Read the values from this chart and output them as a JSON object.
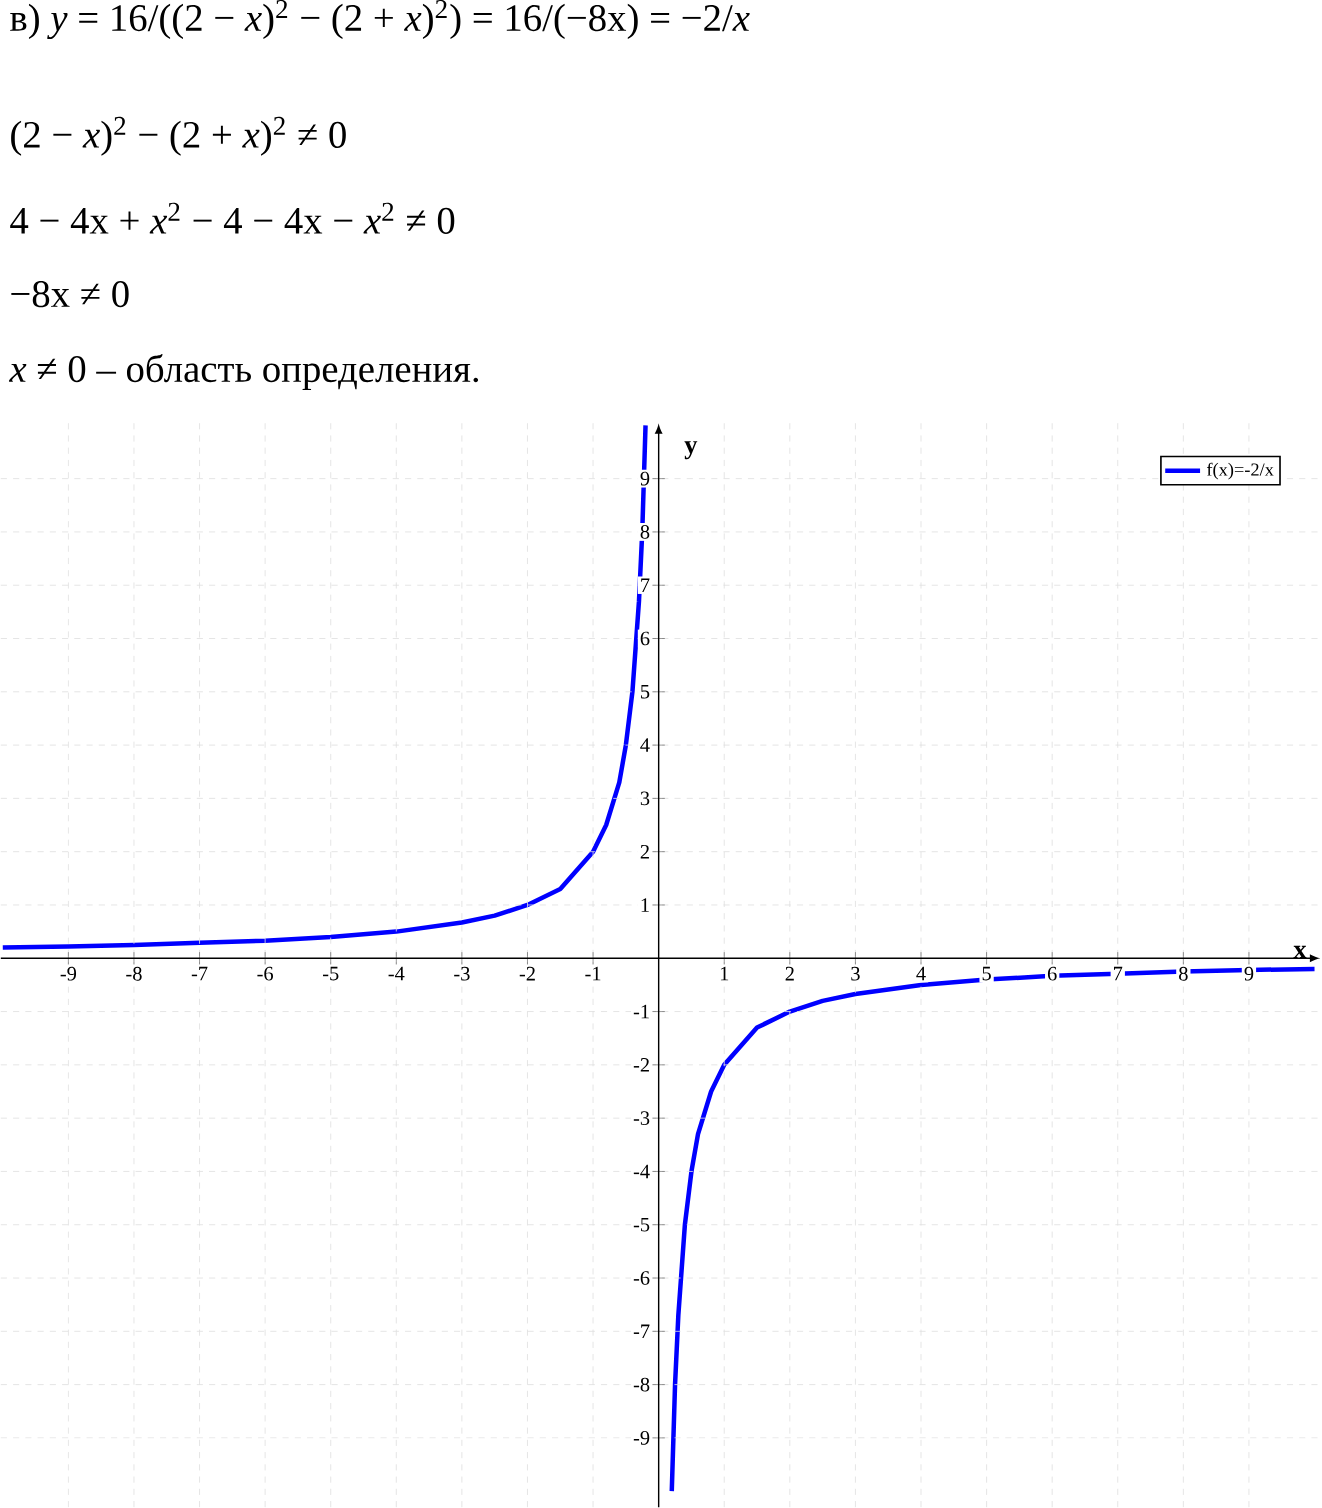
{
  "chart_data": {
    "type": "line",
    "annotations": [
      "в) *y* = 16/((2 − *x*)$^{2}$ − (2 + *x*)$^{2}$) = 16/(−8x) = −2/*x*",
      "(2 − *x*)$^{2}$ − (2 + *x*)$^{2}$ ≠ 0",
      "4 − 4x + *x*$^{2}$ − 4 − 4x − *x*$^{2}$ ≠ 0",
      "−8x ≠ 0",
      "*x* ≠ 0 – область определения."
    ],
    "xlabel": "x",
    "ylabel": "y",
    "xlim": [
      -10.03,
      10.09
    ],
    "ylim": [
      -10.3,
      10.04
    ],
    "xticks": [
      -9,
      -8,
      -7,
      -6,
      -5,
      -4,
      -3,
      -2,
      -1,
      1,
      2,
      3,
      4,
      5,
      6,
      7,
      8,
      9
    ],
    "yticks": [
      -9,
      -8,
      -7,
      -6,
      -5,
      -4,
      -3,
      -2,
      -1,
      1,
      2,
      3,
      4,
      5,
      6,
      7,
      8,
      9
    ],
    "grid": true,
    "legend": "top right",
    "marker": "none",
    "line_style": "solid",
    "x": [
      -10,
      -9,
      -8,
      -7,
      -6,
      -5,
      -4,
      -3,
      -2.5,
      -2,
      -1.5,
      -1,
      -0.8,
      -0.6,
      -0.5,
      -0.4,
      -0.3,
      -0.25,
      -0.2,
      0,
      0.2,
      0.25,
      0.3,
      0.4,
      0.5,
      0.6,
      0.8,
      1,
      1.5,
      2,
      2.5,
      3,
      4,
      5,
      6,
      7,
      8,
      9,
      10
    ],
    "series": [
      {
        "name": "f(x)=-2/x",
        "color": "#0000ff",
        "values": [
          0.2,
          0.22,
          0.25,
          0.29,
          0.33,
          0.4,
          0.5,
          0.67,
          0.8,
          1,
          1.3,
          2,
          2.5,
          3.3,
          4,
          5,
          6.7,
          8,
          10,
          null,
          -10,
          -8,
          -6.7,
          -5,
          -4,
          -3.3,
          -2.5,
          -2,
          -1.3,
          -1,
          -0.8,
          -0.67,
          -0.5,
          -0.4,
          -0.33,
          -0.29,
          -0.25,
          -0.22,
          -0.2
        ]
      }
    ]
  }
}
